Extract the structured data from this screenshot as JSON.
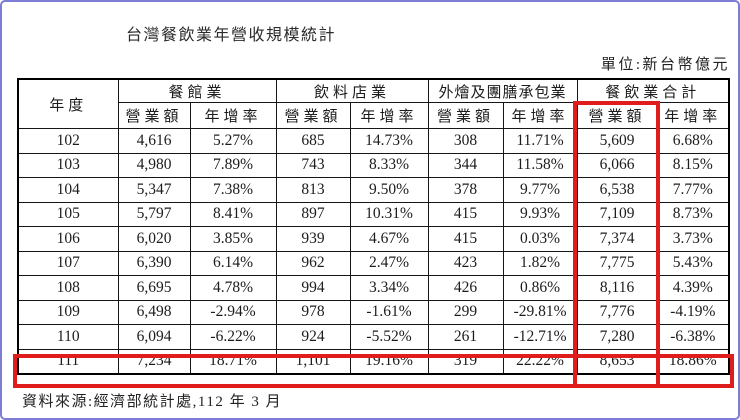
{
  "title": "台灣餐飲業年營收規模統計",
  "unit_label": "單位:新台幣億元",
  "source": "資料來源:經濟部統計處,112 年 3 月",
  "colors": {
    "highlight_red": "#df1d1d",
    "frame_blue": "#7d7dd6",
    "table_border": "#000000"
  },
  "table": {
    "year_header": "年度",
    "groups": [
      "餐館業",
      "飲料店業",
      "外燴及團膳承包業",
      "餐飲業合計"
    ],
    "sub_headers": [
      "營業額",
      "年增率"
    ],
    "rows": [
      [
        "102",
        "4,616",
        "5.27%",
        "685",
        "14.73%",
        "308",
        "11.71%",
        "5,609",
        "6.68%"
      ],
      [
        "103",
        "4,980",
        "7.89%",
        "743",
        "8.33%",
        "344",
        "11.58%",
        "6,066",
        "8.15%"
      ],
      [
        "104",
        "5,347",
        "7.38%",
        "813",
        "9.50%",
        "378",
        "9.77%",
        "6,538",
        "7.77%"
      ],
      [
        "105",
        "5,797",
        "8.41%",
        "897",
        "10.31%",
        "415",
        "9.93%",
        "7,109",
        "8.73%"
      ],
      [
        "106",
        "6,020",
        "3.85%",
        "939",
        "4.67%",
        "415",
        "0.03%",
        "7,374",
        "3.73%"
      ],
      [
        "107",
        "6,390",
        "6.14%",
        "962",
        "2.47%",
        "423",
        "1.82%",
        "7,775",
        "5.43%"
      ],
      [
        "108",
        "6,695",
        "4.78%",
        "994",
        "3.34%",
        "426",
        "0.86%",
        "8,116",
        "4.39%"
      ],
      [
        "109",
        "6,498",
        "-2.94%",
        "978",
        "-1.61%",
        "299",
        "-29.81%",
        "7,776",
        "-4.19%"
      ],
      [
        "110",
        "6,094",
        "-6.22%",
        "924",
        "-5.52%",
        "261",
        "-12.71%",
        "7,280",
        "-6.38%"
      ],
      [
        "111",
        "7,234",
        "18.71%",
        "1,101",
        "19.16%",
        "319",
        "22.22%",
        "8,653",
        "18.86%"
      ]
    ]
  },
  "highlights": {
    "column_box": "餐飲業合計 營業額",
    "row_box": "111"
  }
}
